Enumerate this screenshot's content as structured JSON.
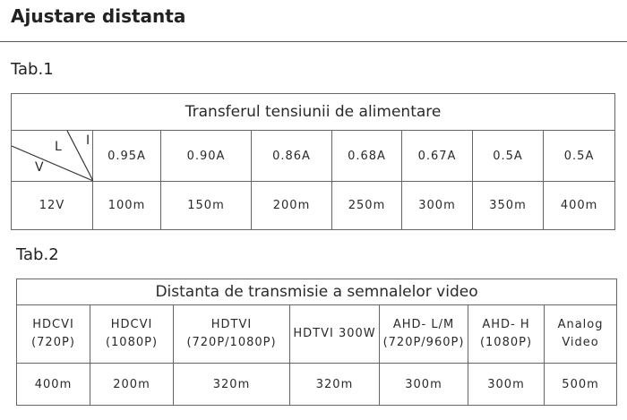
{
  "title": "Ajustare distanta",
  "tab1": {
    "label": "Tab.1",
    "header": "Transferul tensiunii de alimentare",
    "corner": {
      "l": "L",
      "i": "I",
      "v": "V"
    },
    "currents": [
      "0.95A",
      "0.90A",
      "0.86A",
      "0.68A",
      "0.67A",
      "0.5A",
      "0.5A"
    ],
    "voltage": "12V",
    "distances": [
      "100m",
      "150m",
      "200m",
      "250m",
      "300m",
      "350m",
      "400m"
    ]
  },
  "tab2": {
    "label": "Tab.2",
    "header": "Distanta de transmisie a semnalelor video",
    "columns": [
      {
        "line1": "HDCVI",
        "line2": "(720P)",
        "distance": "400m"
      },
      {
        "line1": "HDCVI",
        "line2": "(1080P)",
        "distance": "200m"
      },
      {
        "line1": "HDTVI",
        "line2": "(720P/1080P)",
        "distance": "320m"
      },
      {
        "line1": "HDTVI 300W",
        "line2": "",
        "distance": "320m"
      },
      {
        "line1": "AHD- L/M",
        "line2": "(720P/960P)",
        "distance": "300m"
      },
      {
        "line1": "AHD- H",
        "line2": "(1080P)",
        "distance": "300m"
      },
      {
        "line1": "Analog",
        "line2": "Video",
        "distance": "500m"
      }
    ]
  }
}
